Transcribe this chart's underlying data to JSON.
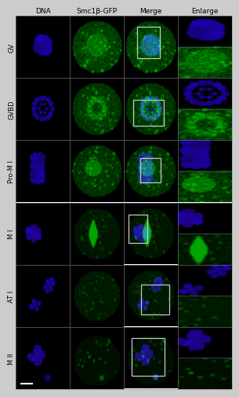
{
  "outer_bg": "#cccccc",
  "cell_bg": "#000000",
  "row_labels": [
    "GV",
    "GVBD",
    "Pro-M I",
    "M I",
    "AT I",
    "M II"
  ],
  "col_labels": [
    "DNA",
    "Smc1β-GFP",
    "Merge",
    "Enlarge"
  ],
  "n_rows": 6,
  "n_cols": 4,
  "col_label_fontsize": 6.5,
  "row_label_fontsize": 6.0,
  "title_color": "#000000",
  "border_color": "#888888",
  "box_color": "#c8c8c8",
  "scalebar_color": "#ffffff"
}
